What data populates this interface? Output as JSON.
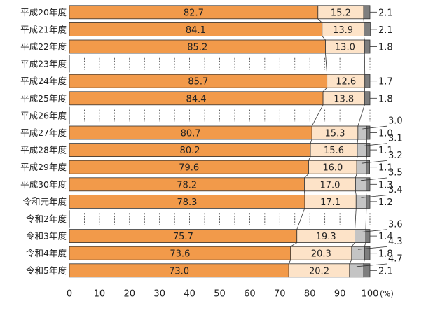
{
  "chart_data": {
    "type": "bar",
    "orientation": "horizontal",
    "stacked": true,
    "xlim": [
      0,
      100
    ],
    "x_ticks": [
      "0",
      "10",
      "20",
      "30",
      "40",
      "50",
      "60",
      "70",
      "80",
      "90",
      "100"
    ],
    "x_unit": "(%)",
    "categories": [
      "平成20年度",
      "平成21年度",
      "平成22年度",
      "平成23年度",
      "平成24年度",
      "平成25年度",
      "平成26年度",
      "平成27年度",
      "平成28年度",
      "平成29年度",
      "平成30年度",
      "令和元年度",
      "令和2年度",
      "令和3年度",
      "令和4年度",
      "令和5年度"
    ],
    "series": [
      {
        "values": [
          82.7,
          84.1,
          85.2,
          null,
          85.7,
          84.4,
          null,
          80.7,
          80.2,
          79.6,
          78.2,
          78.3,
          null,
          75.7,
          73.6,
          73.0
        ],
        "labels": [
          "82.7",
          "84.1",
          "85.2",
          "",
          "85.7",
          "84.4",
          "",
          "80.7",
          "80.2",
          "79.6",
          "78.2",
          "78.3",
          "",
          "75.7",
          "73.6",
          "73.0"
        ]
      },
      {
        "values": [
          15.2,
          13.9,
          13.0,
          null,
          12.6,
          13.8,
          null,
          15.3,
          15.6,
          16.0,
          17.0,
          17.1,
          null,
          19.3,
          20.3,
          20.2
        ],
        "labels": [
          "15.2",
          "13.9",
          "13.0",
          "",
          "12.6",
          "13.8",
          "",
          "15.3",
          "15.6",
          "16.0",
          "17.0",
          "17.1",
          "",
          "19.3",
          "20.3",
          "20.2"
        ]
      },
      {
        "values": [
          null,
          null,
          null,
          null,
          null,
          null,
          null,
          3.0,
          3.1,
          3.2,
          3.5,
          3.4,
          null,
          3.6,
          4.3,
          4.7
        ],
        "labels": [
          "",
          "",
          "",
          "",
          "",
          "",
          "",
          "3.0",
          "3.1",
          "3.2",
          "3.5",
          "3.4",
          "",
          "3.6",
          "4.3",
          "4.7"
        ]
      },
      {
        "values": [
          2.1,
          2.1,
          1.8,
          null,
          1.7,
          1.8,
          null,
          1.0,
          1.1,
          1.1,
          1.3,
          1.2,
          null,
          1.4,
          1.8,
          2.1
        ],
        "labels": [
          "2.1",
          "2.1",
          "1.8",
          "",
          "1.7",
          "1.8",
          "",
          "1.0",
          "1.1",
          "1.1",
          "1.3",
          "1.2",
          "",
          "1.4",
          "1.8",
          "2.1"
        ]
      }
    ],
    "colors": [
      "#f29a4a",
      "#fde3c8",
      "#c4c4c4",
      "#7e7e7e"
    ],
    "grid": "dotted vertical lines on rows without data",
    "title": "",
    "legend": ""
  }
}
